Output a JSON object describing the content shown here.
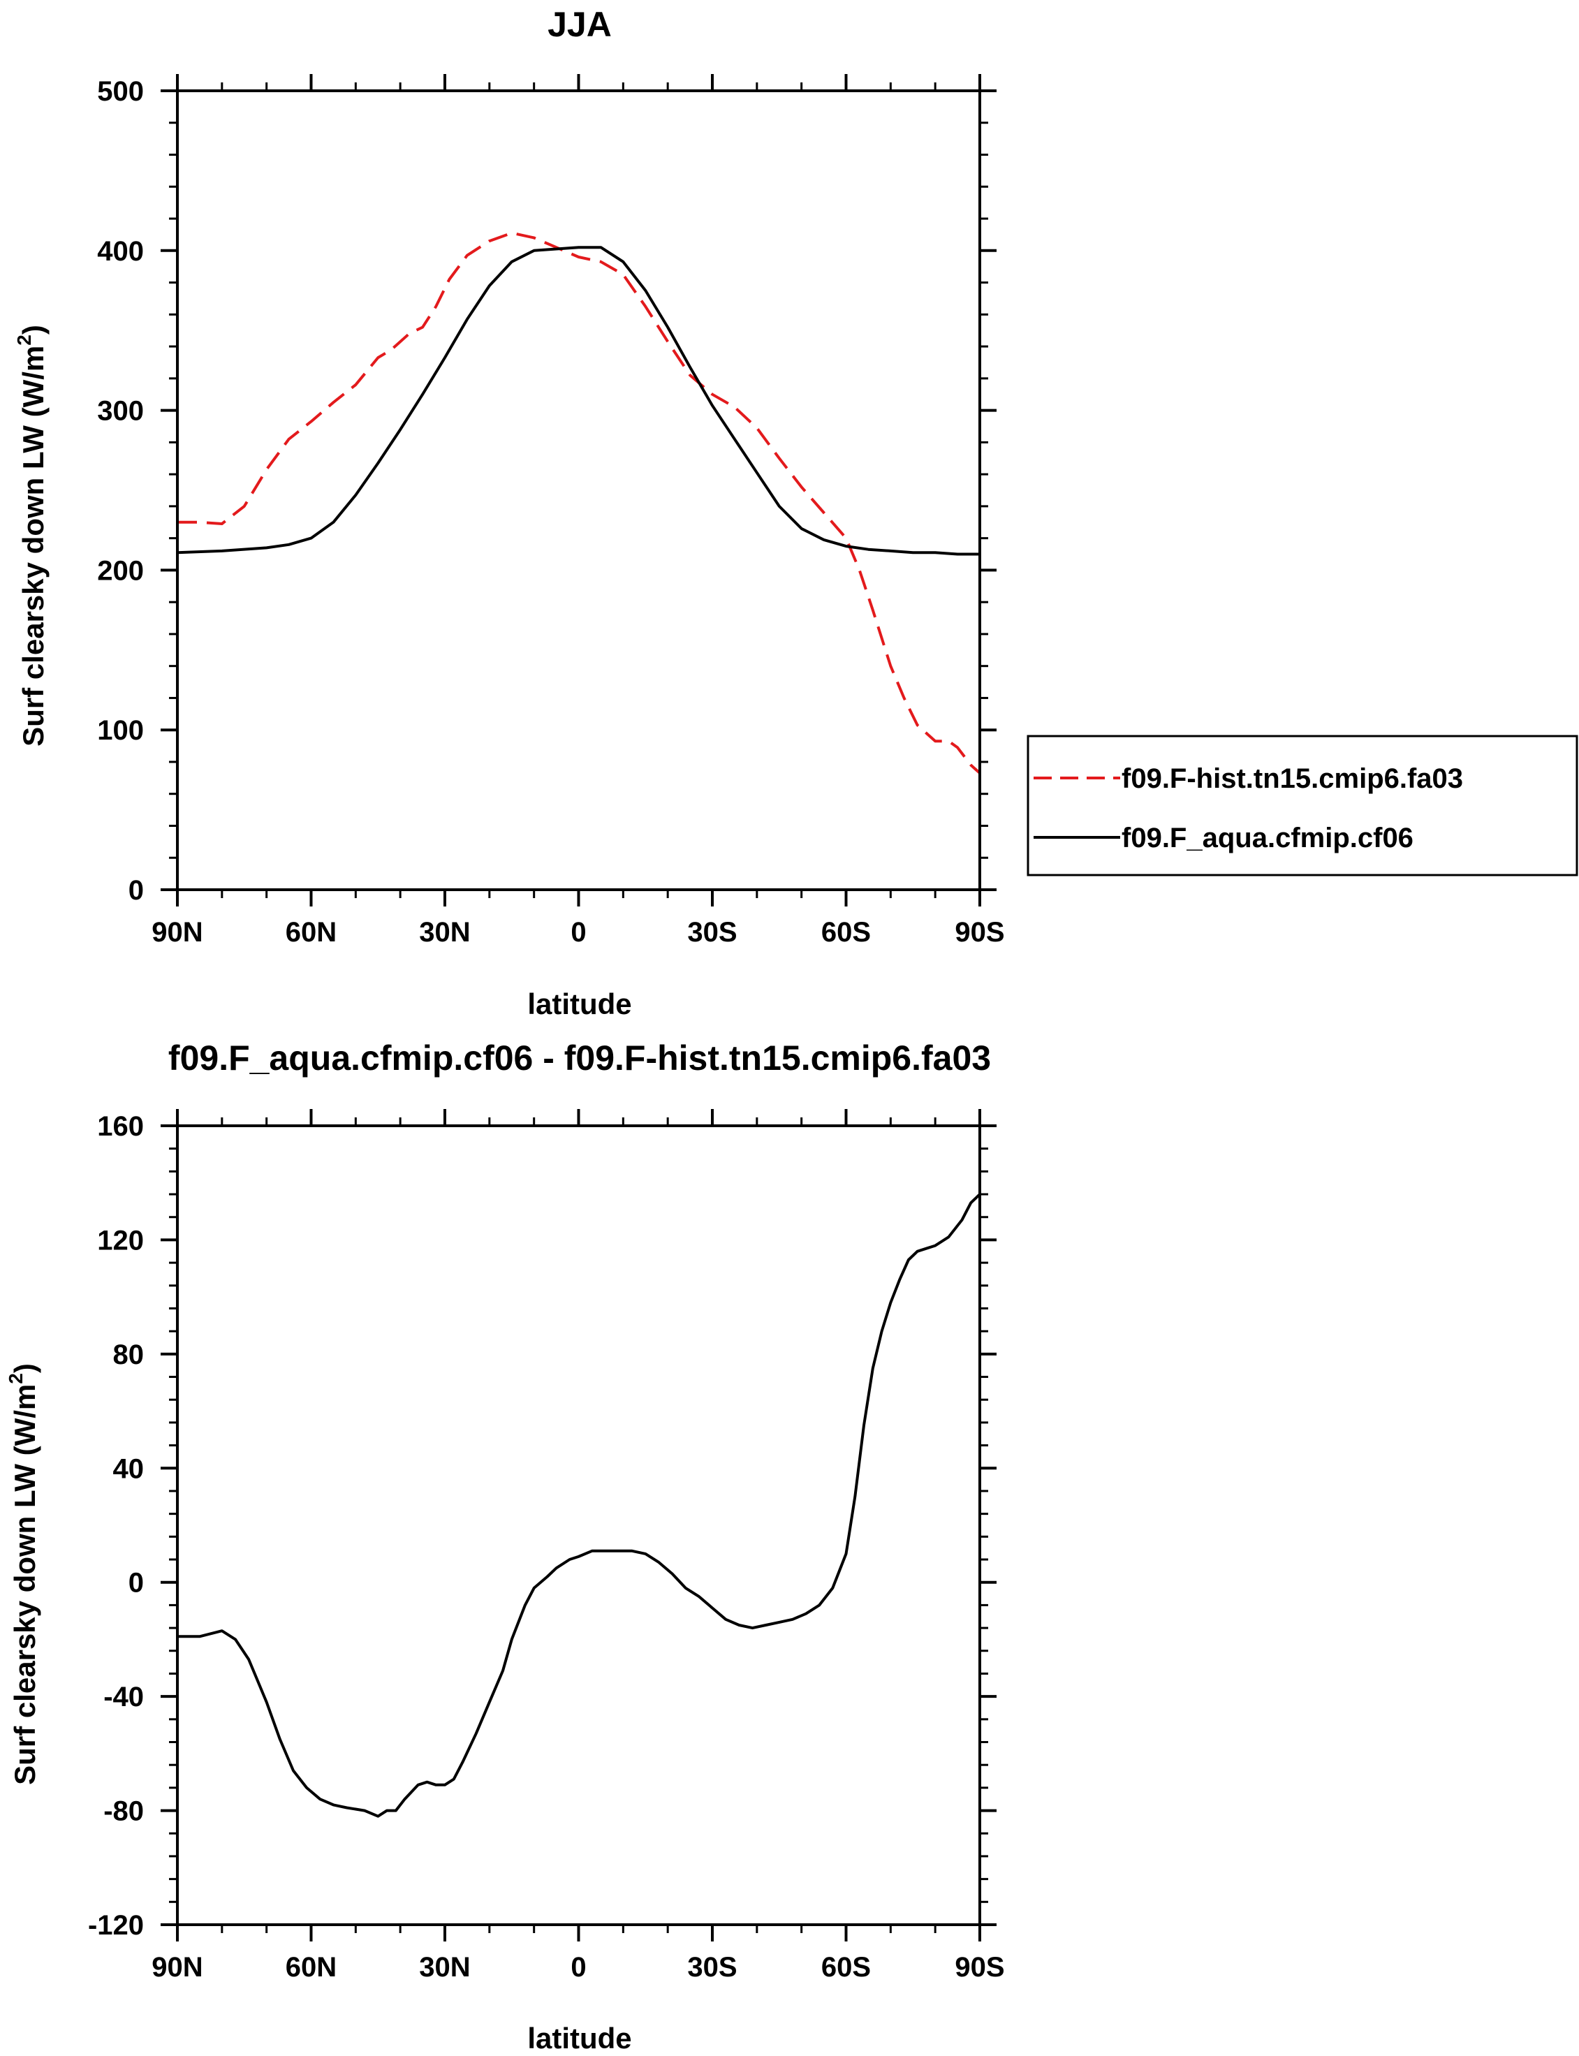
{
  "chart_data": [
    {
      "type": "line",
      "title": "JJA",
      "xlabel": "latitude",
      "ylabel": "Surf clearsky down LW (W/m",
      "ylabel_sup": "2",
      "ylabel_close": ")",
      "x_direction": "north-to-south",
      "xlim": [
        90,
        -90
      ],
      "ylim": [
        0,
        500
      ],
      "xticks": [
        90,
        60,
        30,
        0,
        -30,
        -60,
        -90
      ],
      "xtick_labels": [
        "90N",
        "60N",
        "30N",
        "0",
        "30S",
        "60S",
        "90S"
      ],
      "yticks": [
        0,
        100,
        200,
        300,
        400,
        500
      ],
      "ytick_labels": [
        "0",
        "100",
        "200",
        "300",
        "400",
        "500"
      ],
      "grid": false,
      "legend_position": "right, outside plot",
      "series": [
        {
          "name": "f09.F-hist.tn15.cmip6.fa03",
          "color": "#e31a1c",
          "style": "dashed",
          "x": [
            90,
            85,
            80,
            75,
            70,
            65,
            60,
            55,
            50,
            45,
            42,
            38,
            35,
            32,
            29,
            25,
            20,
            15,
            10,
            5,
            0,
            -5,
            -10,
            -15,
            -20,
            -25,
            -30,
            -35,
            -40,
            -45,
            -50,
            -55,
            -60,
            -63,
            -66,
            -70,
            -73,
            -76,
            -80,
            -83,
            -85,
            -88,
            -90
          ],
          "y": [
            230,
            230,
            229,
            240,
            263,
            282,
            293,
            305,
            316,
            333,
            338,
            348,
            352,
            365,
            382,
            397,
            406,
            411,
            408,
            402,
            396,
            393,
            385,
            365,
            343,
            322,
            310,
            302,
            289,
            270,
            252,
            236,
            220,
            200,
            175,
            140,
            120,
            103,
            93,
            93,
            89,
            78,
            73
          ]
        },
        {
          "name": "f09.F_aqua.cfmip.cf06",
          "color": "#000000",
          "style": "solid",
          "x": [
            90,
            80,
            70,
            65,
            60,
            55,
            50,
            45,
            40,
            35,
            30,
            25,
            20,
            15,
            10,
            5,
            0,
            -5,
            -10,
            -15,
            -20,
            -25,
            -30,
            -35,
            -40,
            -45,
            -50,
            -55,
            -60,
            -65,
            -70,
            -75,
            -80,
            -85,
            -90
          ],
          "y": [
            211,
            212,
            214,
            216,
            220,
            230,
            247,
            267,
            288,
            310,
            333,
            357,
            378,
            393,
            400,
            401,
            402,
            402,
            393,
            375,
            352,
            327,
            303,
            282,
            261,
            240,
            226,
            219,
            215,
            213,
            212,
            211,
            211,
            210,
            210
          ]
        }
      ]
    },
    {
      "type": "line",
      "title": "f09.F_aqua.cfmip.cf06 - f09.F-hist.tn15.cmip6.fa03",
      "xlabel": "latitude",
      "ylabel": "Surf clearsky down LW (W/m",
      "ylabel_sup": "2",
      "ylabel_close": ")",
      "x_direction": "north-to-south",
      "xlim": [
        90,
        -90
      ],
      "ylim": [
        -120,
        160
      ],
      "xticks": [
        90,
        60,
        30,
        0,
        -30,
        -60,
        -90
      ],
      "xtick_labels": [
        "90N",
        "60N",
        "30N",
        "0",
        "30S",
        "60S",
        "90S"
      ],
      "yticks": [
        -120,
        -80,
        -40,
        0,
        40,
        80,
        120,
        160
      ],
      "ytick_labels": [
        "-120",
        "-80",
        "-40",
        "0",
        "40",
        "80",
        "120",
        "160"
      ],
      "grid": false,
      "series": [
        {
          "color": "#000000",
          "style": "solid",
          "x": [
            90,
            85,
            80,
            77,
            74,
            70,
            67,
            64,
            61,
            58,
            55,
            52,
            48,
            45,
            43,
            41,
            39,
            36,
            34,
            32,
            30,
            28,
            26,
            23,
            20,
            17,
            15,
            12,
            10,
            7,
            5,
            2,
            0,
            -3,
            -6,
            -9,
            -12,
            -15,
            -18,
            -21,
            -24,
            -27,
            -30,
            -33,
            -36,
            -39,
            -42,
            -45,
            -48,
            -51,
            -54,
            -57,
            -60,
            -62,
            -64,
            -66,
            -68,
            -70,
            -72,
            -74,
            -76,
            -78,
            -80,
            -83,
            -86,
            -88,
            -90
          ],
          "y": [
            -19,
            -19,
            -17,
            -20,
            -27,
            -42,
            -55,
            -66,
            -72,
            -76,
            -78,
            -79,
            -80,
            -82,
            -80,
            -80,
            -76,
            -71,
            -70,
            -71,
            -71,
            -69,
            -63,
            -53,
            -42,
            -31,
            -20,
            -8,
            -2,
            2,
            5,
            8,
            9,
            11,
            11,
            11,
            11,
            10,
            7,
            3,
            -2,
            -5,
            -9,
            -13,
            -15,
            -16,
            -15,
            -14,
            -13,
            -11,
            -8,
            -2,
            10,
            30,
            55,
            75,
            88,
            98,
            106,
            113,
            116,
            117,
            118,
            121,
            127,
            133,
            136
          ]
        }
      ]
    }
  ]
}
